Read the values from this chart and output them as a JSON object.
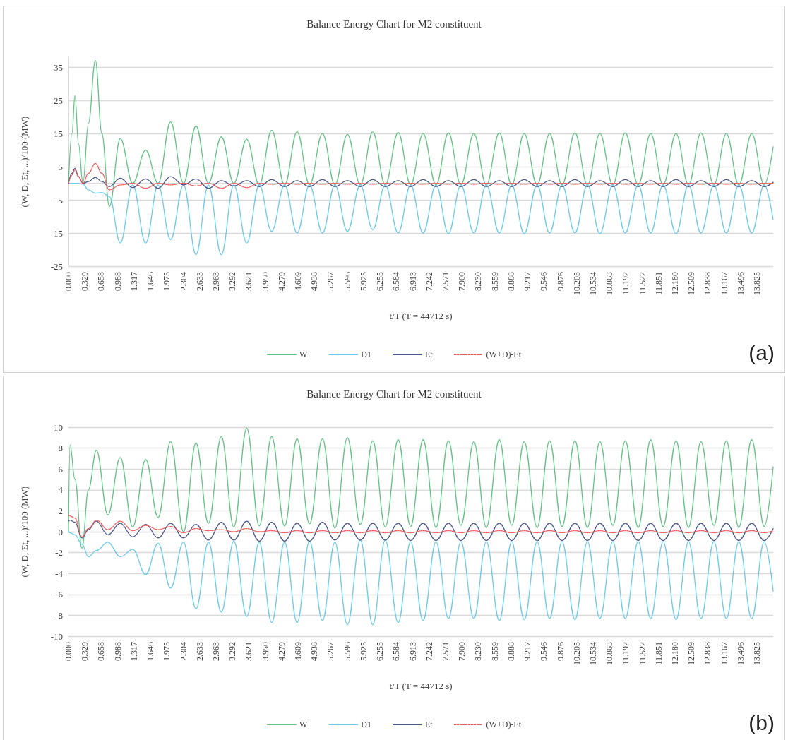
{
  "chart_data": [
    {
      "type": "line",
      "title": "Balance Energy Chart for M2 constituent",
      "xlabel": "t/T (T = 44712 s)",
      "ylabel": "(W, D, Et, ...)/100 (MW)",
      "annotations": [
        "(a)"
      ],
      "x": [
        0,
        0.07,
        0.13,
        0.2,
        0.29,
        0.4,
        0.54,
        0.67,
        0.82,
        1.04,
        1.29,
        1.55,
        1.8,
        2.05,
        2.31,
        2.56,
        2.81,
        3.07,
        3.32,
        3.58,
        3.83,
        4.08,
        4.34,
        4.59,
        4.84,
        5.1,
        5.35,
        5.6,
        5.86,
        6.11,
        6.36,
        6.62,
        6.87,
        7.12,
        7.38,
        7.63,
        7.88,
        8.14,
        8.39,
        8.65,
        8.9,
        9.15,
        9.41,
        9.66,
        9.91,
        10.17,
        10.42,
        10.67,
        10.93,
        11.18,
        11.44,
        11.69,
        11.94,
        12.2,
        12.45,
        12.7,
        12.96,
        13.21,
        13.46,
        13.72,
        13.97,
        14.15
      ],
      "series": [
        {
          "name": "W",
          "color": "#63c386",
          "values": [
            0,
            15,
            26.5,
            12,
            0,
            18,
            37,
            15,
            -7,
            13.5,
            0,
            10,
            0,
            18.5,
            0,
            17.3,
            0,
            14,
            0,
            13.3,
            -0.5,
            16,
            -0.5,
            15.5,
            -0.5,
            15,
            -0.5,
            14.7,
            -0.5,
            15.5,
            -0.5,
            15.3,
            -0.5,
            15,
            -0.5,
            15.2,
            -0.5,
            15,
            -0.5,
            15.2,
            -0.5,
            15,
            -0.5,
            15,
            -0.5,
            15.2,
            -0.5,
            15,
            -0.5,
            15.2,
            -0.5,
            15,
            -0.5,
            15,
            -0.5,
            15.2,
            -0.5,
            15,
            -0.5,
            15,
            -0.5,
            11
          ]
        },
        {
          "name": "D1",
          "color": "#6ccbeb",
          "values": [
            0,
            0,
            0,
            0,
            -0.3,
            -2,
            -3,
            -2.8,
            -4,
            -18,
            -0.5,
            -18,
            -0.5,
            -17,
            -0.5,
            -21.5,
            -0.5,
            -21.5,
            -0.5,
            -18,
            -0.5,
            -14.5,
            -0.5,
            -15,
            -0.5,
            -15,
            -0.5,
            -14.5,
            -0.5,
            -14,
            -0.5,
            -15,
            -0.5,
            -15,
            -0.5,
            -15.2,
            -0.5,
            -15,
            -0.5,
            -15,
            -0.5,
            -15.2,
            -0.5,
            -15,
            -0.5,
            -15,
            -0.5,
            -15.2,
            -0.5,
            -15,
            -0.5,
            -15,
            -0.5,
            -15.2,
            -0.5,
            -15,
            -0.5,
            -15,
            -0.5,
            -15,
            -0.5,
            -11
          ]
        },
        {
          "name": "Et",
          "color": "#4b5889",
          "values": [
            0,
            3,
            4.5,
            2,
            0,
            0.5,
            1.8,
            0.5,
            -1,
            1.5,
            -1.3,
            1.3,
            -1.5,
            2,
            -0.5,
            1.3,
            -1.5,
            0.8,
            -0.8,
            0.8,
            -1,
            1.1,
            -1,
            0.8,
            -1,
            1.1,
            -1,
            0.8,
            -1,
            1.1,
            -1,
            0.8,
            -1,
            1.1,
            -1,
            0.8,
            -1,
            1.1,
            -1,
            0.8,
            -1,
            1.1,
            -1,
            0.8,
            -1,
            1.1,
            -1,
            0.8,
            -1,
            1.1,
            -1,
            0.8,
            -1,
            1.1,
            -1,
            0.8,
            -1,
            1.1,
            -1,
            0.8,
            -1,
            0.3
          ]
        },
        {
          "name": "(W+D)-Et",
          "color": "#f05a5a",
          "line_style": "dotted",
          "values": [
            0,
            2.5,
            4,
            2,
            0,
            3,
            6,
            3,
            -2,
            -0.5,
            0,
            -1.5,
            0,
            -0.5,
            0,
            -0.8,
            0,
            -1.5,
            0,
            -1.3,
            0,
            -0.3,
            0,
            -0.3,
            0,
            -0.3,
            0,
            -0.3,
            0,
            -0.3,
            0,
            -0.3,
            0,
            -0.3,
            0,
            -0.3,
            0,
            -0.3,
            0,
            -0.3,
            0,
            -0.3,
            0,
            -0.3,
            0,
            -0.3,
            0,
            -0.3,
            0,
            -0.3,
            0,
            -0.3,
            0,
            -0.3,
            0,
            -0.3,
            0,
            -0.3,
            0,
            -0.3,
            0,
            0
          ]
        }
      ],
      "xlim": [
        0,
        14.15
      ],
      "ylim": [
        -25,
        38
      ],
      "yticks": [
        -25,
        -15,
        -5,
        5,
        15,
        25,
        35
      ],
      "xticks": [
        {
          "value": 0,
          "label": "0.000"
        },
        {
          "value": 0.329,
          "label": "0.329"
        },
        {
          "value": 0.658,
          "label": "0.658"
        },
        {
          "value": 0.988,
          "label": "0.988"
        },
        {
          "value": 1.317,
          "label": "1.317"
        },
        {
          "value": 1.646,
          "label": "1.646"
        },
        {
          "value": 1.975,
          "label": "1.975"
        },
        {
          "value": 2.304,
          "label": "2.304"
        },
        {
          "value": 2.633,
          "label": "2.633"
        },
        {
          "value": 2.963,
          "label": "2.963"
        },
        {
          "value": 3.292,
          "label": "3.292"
        },
        {
          "value": 3.621,
          "label": "3.621"
        },
        {
          "value": 3.95,
          "label": "3.950"
        },
        {
          "value": 4.279,
          "label": "4.279"
        },
        {
          "value": 4.609,
          "label": "4.609"
        },
        {
          "value": 4.938,
          "label": "4.938"
        },
        {
          "value": 5.267,
          "label": "5.267"
        },
        {
          "value": 5.596,
          "label": "5.596"
        },
        {
          "value": 5.925,
          "label": "5.925"
        },
        {
          "value": 6.255,
          "label": "6.255"
        },
        {
          "value": 6.584,
          "label": "6.584"
        },
        {
          "value": 6.913,
          "label": "6.913"
        },
        {
          "value": 7.242,
          "label": "7.242"
        },
        {
          "value": 7.571,
          "label": "7.571"
        },
        {
          "value": 7.9,
          "label": "7.900"
        },
        {
          "value": 8.23,
          "label": "8.230"
        },
        {
          "value": 8.559,
          "label": "8.559"
        },
        {
          "value": 8.888,
          "label": "8.888"
        },
        {
          "value": 9.217,
          "label": "9.217"
        },
        {
          "value": 9.546,
          "label": "9.546"
        },
        {
          "value": 9.876,
          "label": "9.876"
        },
        {
          "value": 10.205,
          "label": "10.205"
        },
        {
          "value": 10.534,
          "label": "10.534"
        },
        {
          "value": 10.863,
          "label": "10.863"
        },
        {
          "value": 11.192,
          "label": "11.192"
        },
        {
          "value": 11.522,
          "label": "11.522"
        },
        {
          "value": 11.851,
          "label": "11.851"
        },
        {
          "value": 12.18,
          "label": "12.180"
        },
        {
          "value": 12.509,
          "label": "12.509"
        },
        {
          "value": 12.838,
          "label": "12.838"
        },
        {
          "value": 13.167,
          "label": "13.167"
        },
        {
          "value": 13.496,
          "label": "13.496"
        },
        {
          "value": 13.825,
          "label": "13.825"
        }
      ],
      "grid": "y",
      "legend": "bottom",
      "marker": "none",
      "line_style": "solid"
    },
    {
      "type": "line",
      "title": "Balance Energy Chart for M2 constituent",
      "xlabel": "t/T (T = 44712 s)",
      "ylabel": "(W, D, Et, ...)/100 (MW)",
      "annotations": [
        "(b)"
      ],
      "x": [
        0,
        0.03,
        0.13,
        0.27,
        0.4,
        0.56,
        0.79,
        1.04,
        1.29,
        1.55,
        1.8,
        2.05,
        2.31,
        2.56,
        2.81,
        3.07,
        3.32,
        3.58,
        3.83,
        4.08,
        4.34,
        4.59,
        4.84,
        5.1,
        5.35,
        5.6,
        5.86,
        6.11,
        6.36,
        6.62,
        6.87,
        7.12,
        7.38,
        7.63,
        7.88,
        8.14,
        8.39,
        8.65,
        8.9,
        9.15,
        9.41,
        9.66,
        9.91,
        10.17,
        10.42,
        10.67,
        10.93,
        11.18,
        11.44,
        11.69,
        11.94,
        12.2,
        12.45,
        12.7,
        12.96,
        13.21,
        13.46,
        13.72,
        13.97,
        14.15
      ],
      "series": [
        {
          "name": "W",
          "color": "#63c386",
          "values": [
            0,
            8.3,
            5,
            -1.6,
            4,
            7.8,
            1.6,
            7.1,
            0.45,
            6.9,
            1.35,
            8.6,
            0,
            8.5,
            0.8,
            9.1,
            0.45,
            9.9,
            0.55,
            9.1,
            0.55,
            8.9,
            0.75,
            8.9,
            0.35,
            9,
            0.7,
            8.7,
            0.45,
            8.8,
            0.5,
            8.8,
            0.4,
            8.7,
            0.6,
            8.6,
            0.4,
            8.8,
            0.6,
            8.6,
            0.4,
            8.7,
            0.5,
            8.7,
            0.4,
            8.6,
            0.6,
            8.7,
            0.4,
            8.8,
            0.5,
            8.7,
            0.4,
            8.6,
            0.6,
            8.7,
            0.4,
            8.8,
            0.5,
            6.2
          ]
        },
        {
          "name": "D1",
          "color": "#6ccbeb",
          "values": [
            0,
            -0.1,
            -0.3,
            -1.2,
            -2.4,
            -1.8,
            -1,
            -2.4,
            -1.7,
            -4.1,
            -1.1,
            -5.4,
            -1,
            -7.4,
            -1,
            -7.7,
            -0.9,
            -8.1,
            -1,
            -8.7,
            -1,
            -8.7,
            -0.9,
            -8.5,
            -1,
            -8.9,
            -0.8,
            -8.9,
            -0.8,
            -8.7,
            -0.95,
            -8.5,
            -0.95,
            -8.3,
            -0.95,
            -8.3,
            -0.95,
            -8.5,
            -0.95,
            -8.4,
            -0.95,
            -8.3,
            -0.95,
            -8.4,
            -0.95,
            -8.3,
            -0.95,
            -8.3,
            -0.95,
            -8.3,
            -0.95,
            -8.4,
            -0.95,
            -8.3,
            -0.95,
            -8.3,
            -0.95,
            -8.3,
            -0.95,
            -5.7
          ]
        },
        {
          "name": "Et",
          "color": "#4b5889",
          "values": [
            1,
            1.1,
            0.9,
            -0.6,
            0.2,
            1,
            -0.3,
            0.8,
            -0.5,
            0.7,
            -0.6,
            0.8,
            -0.6,
            0.7,
            -0.8,
            0.9,
            -0.8,
            1,
            -0.9,
            0.9,
            -0.9,
            0.8,
            -0.9,
            0.9,
            -0.8,
            0.8,
            -0.8,
            0.8,
            -0.8,
            0.8,
            -0.85,
            0.8,
            -0.85,
            0.8,
            -0.85,
            0.8,
            -0.85,
            0.8,
            -0.85,
            0.8,
            -0.85,
            0.8,
            -0.85,
            0.8,
            -0.85,
            0.8,
            -0.85,
            0.8,
            -0.85,
            0.8,
            -0.85,
            0.8,
            -0.85,
            0.8,
            -0.85,
            0.8,
            -0.85,
            0.8,
            -0.85,
            0.3
          ]
        },
        {
          "name": "(W+D)-Et",
          "color": "#f05a5a",
          "line_style": "dotted",
          "values": [
            1.6,
            1.5,
            1.3,
            -0.5,
            0.3,
            1.1,
            0.2,
            1,
            0.1,
            0.6,
            0.2,
            0.5,
            -0.1,
            0.3,
            0.1,
            0.2,
            0,
            0.3,
            0,
            0.1,
            -0.1,
            0.1,
            -0.1,
            0.1,
            -0.1,
            0.1,
            -0.1,
            0.1,
            -0.1,
            0.1,
            -0.1,
            0.1,
            -0.1,
            0.1,
            -0.1,
            0.1,
            -0.1,
            0.1,
            -0.1,
            0.1,
            -0.1,
            0.1,
            -0.1,
            0.1,
            -0.1,
            0.1,
            -0.1,
            0.1,
            -0.1,
            0.1,
            -0.1,
            0.1,
            -0.1,
            0.1,
            -0.1,
            0.1,
            -0.1,
            0.1,
            -0.1,
            0.1
          ]
        }
      ],
      "xlim": [
        0,
        14.15
      ],
      "ylim": [
        -10,
        10
      ],
      "yticks": [
        -10,
        -8,
        -6,
        -4,
        -2,
        0,
        2,
        4,
        6,
        8,
        10
      ],
      "xticks": [
        {
          "value": 0,
          "label": "0.000"
        },
        {
          "value": 0.329,
          "label": "0.329"
        },
        {
          "value": 0.658,
          "label": "0.658"
        },
        {
          "value": 0.988,
          "label": "0.988"
        },
        {
          "value": 1.317,
          "label": "1.317"
        },
        {
          "value": 1.646,
          "label": "1.646"
        },
        {
          "value": 1.975,
          "label": "1.975"
        },
        {
          "value": 2.304,
          "label": "2.304"
        },
        {
          "value": 2.633,
          "label": "2.633"
        },
        {
          "value": 2.963,
          "label": "2.963"
        },
        {
          "value": 3.292,
          "label": "3.292"
        },
        {
          "value": 3.621,
          "label": "3.621"
        },
        {
          "value": 3.95,
          "label": "3.950"
        },
        {
          "value": 4.279,
          "label": "4.279"
        },
        {
          "value": 4.609,
          "label": "4.609"
        },
        {
          "value": 4.938,
          "label": "4.938"
        },
        {
          "value": 5.267,
          "label": "5.267"
        },
        {
          "value": 5.596,
          "label": "5.596"
        },
        {
          "value": 5.925,
          "label": "5.925"
        },
        {
          "value": 6.255,
          "label": "6.255"
        },
        {
          "value": 6.584,
          "label": "6.584"
        },
        {
          "value": 6.913,
          "label": "6.913"
        },
        {
          "value": 7.242,
          "label": "7.242"
        },
        {
          "value": 7.571,
          "label": "7.571"
        },
        {
          "value": 7.9,
          "label": "7.900"
        },
        {
          "value": 8.23,
          "label": "8.230"
        },
        {
          "value": 8.559,
          "label": "8.559"
        },
        {
          "value": 8.888,
          "label": "8.888"
        },
        {
          "value": 9.217,
          "label": "9.217"
        },
        {
          "value": 9.546,
          "label": "9.546"
        },
        {
          "value": 9.876,
          "label": "9.876"
        },
        {
          "value": 10.205,
          "label": "10.205"
        },
        {
          "value": 10.534,
          "label": "10.534"
        },
        {
          "value": 10.863,
          "label": "10.863"
        },
        {
          "value": 11.192,
          "label": "11.192"
        },
        {
          "value": 11.522,
          "label": "11.522"
        },
        {
          "value": 11.851,
          "label": "11.851"
        },
        {
          "value": 12.18,
          "label": "12.180"
        },
        {
          "value": 12.509,
          "label": "12.509"
        },
        {
          "value": 12.838,
          "label": "12.838"
        },
        {
          "value": 13.167,
          "label": "13.167"
        },
        {
          "value": 13.496,
          "label": "13.496"
        },
        {
          "value": 13.825,
          "label": "13.825"
        }
      ],
      "grid": "y",
      "legend": "bottom",
      "marker": "none",
      "line_style": "solid"
    }
  ]
}
